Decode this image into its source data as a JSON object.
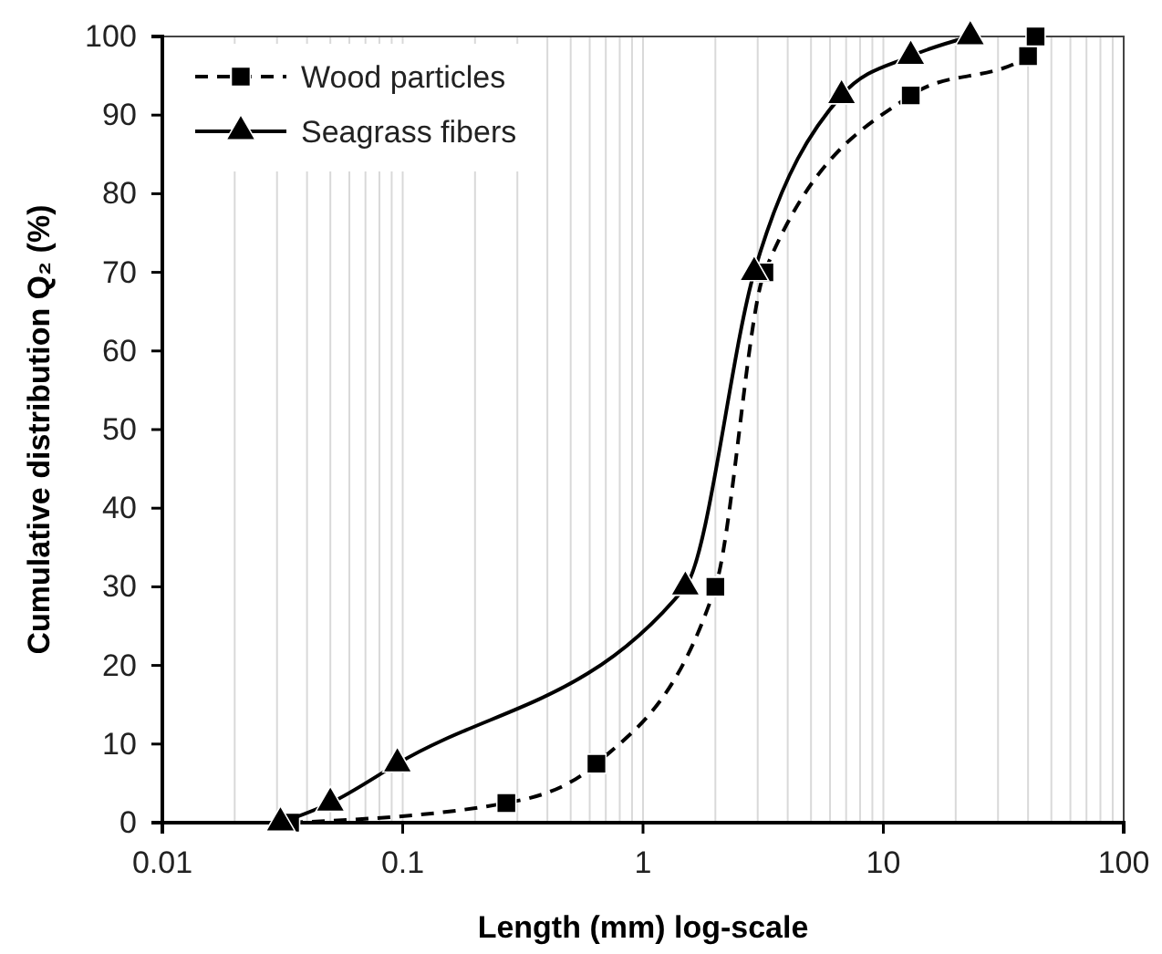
{
  "chart_data": {
    "type": "line",
    "xlabel": "Length (mm) log-scale",
    "ylabel": "Cumulative distribution Q₂ (%)",
    "log": "x",
    "grid": "x",
    "legend": "top left",
    "xlim": [
      0.01,
      100
    ],
    "xticks": [
      0.01,
      0.1,
      1,
      10,
      100
    ],
    "ylim": [
      0,
      100
    ],
    "yticks": [
      0,
      10,
      20,
      30,
      40,
      50,
      60,
      70,
      80,
      90,
      100
    ],
    "series": [
      {
        "name": "Wood particles",
        "color": "#000000",
        "marker": "square",
        "line_style": "dashed",
        "x": [
          0.034,
          0.27,
          0.64,
          2,
          3.2,
          13,
          40,
          43
        ],
        "values": [
          0,
          2.5,
          7.5,
          30,
          70,
          92.5,
          97.5,
          100
        ]
      },
      {
        "name": "Seagrass fibers",
        "color": "#000000",
        "marker": "triangle",
        "line_style": "solid",
        "x": [
          0.031,
          0.05,
          0.095,
          1.5,
          2.9,
          6.7,
          13,
          23
        ],
        "values": [
          0,
          2.5,
          7.5,
          30,
          70,
          92.5,
          97.5,
          100
        ]
      }
    ]
  }
}
